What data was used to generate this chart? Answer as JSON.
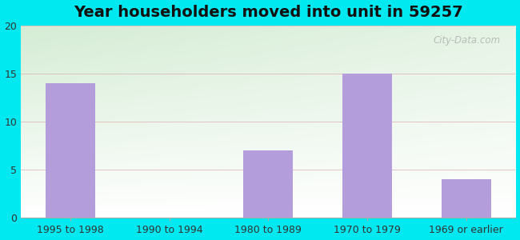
{
  "title": "Year householders moved into unit in 59257",
  "categories": [
    "1995 to 1998",
    "1990 to 1994",
    "1980 to 1989",
    "1970 to 1979",
    "1969 or earlier"
  ],
  "values": [
    14,
    0,
    7,
    15,
    4
  ],
  "bar_color": "#b39ddb",
  "ylim": [
    0,
    20
  ],
  "yticks": [
    0,
    5,
    10,
    15,
    20
  ],
  "background_outer": "#00e8f0",
  "background_corner_tl": "#d4ecd4",
  "background_corner_tr": "#ddeedd",
  "background_corner_bl": "#f0faf0",
  "background_corner_br": "#ffffff",
  "grid_color": "#ddbbbb",
  "title_fontsize": 14,
  "tick_fontsize": 9,
  "watermark": "City-Data.com"
}
